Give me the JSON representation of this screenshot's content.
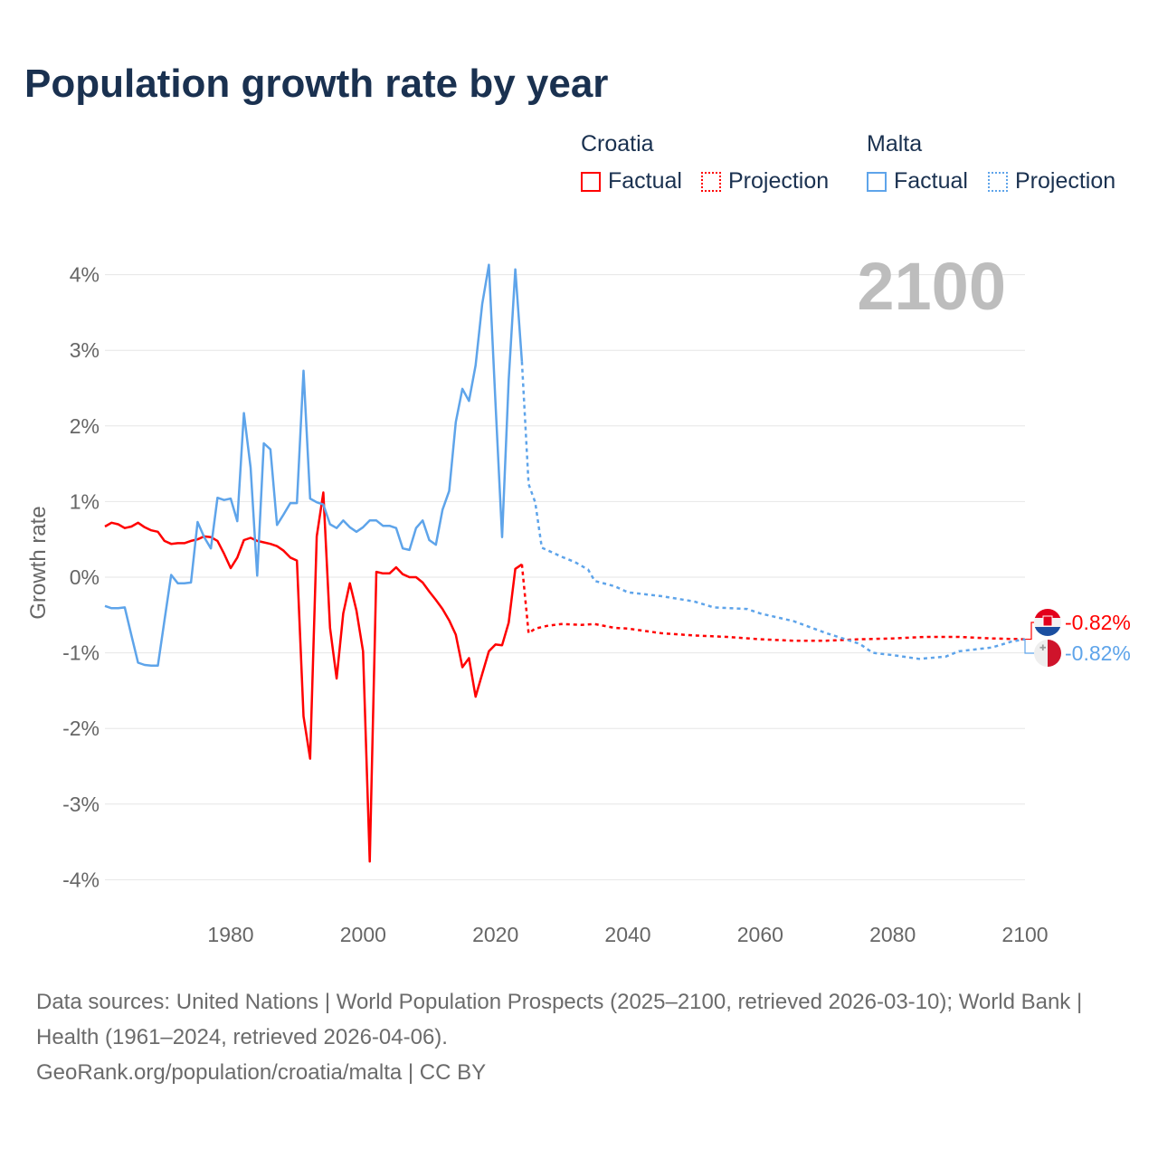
{
  "title": "Population growth rate by year",
  "legend": {
    "groups": [
      {
        "name": "Croatia",
        "factual": "Factual",
        "projection": "Projection",
        "color": "#ff0000"
      },
      {
        "name": "Malta",
        "factual": "Factual",
        "projection": "Projection",
        "color": "#5ea4ea"
      }
    ]
  },
  "year_label": "2100",
  "footer": {
    "sources": "Data sources: United Nations | World Population Prospects (2025–2100, retrieved 2026-03-10); World Bank | Health (1961–2024, retrieved 2026-04-06).",
    "credit": "GeoRank.org/population/croatia/malta | CC BY"
  },
  "chart_data": {
    "type": "line",
    "title": "Population growth rate by year",
    "xlabel": "",
    "ylabel": "Growth rate",
    "xlim": [
      1961,
      2100
    ],
    "ylim": [
      -4.4,
      4.3
    ],
    "xticks": [
      1980,
      2000,
      2020,
      2040,
      2060,
      2080,
      2100
    ],
    "yticks": [
      4,
      3,
      2,
      1,
      0,
      -1,
      -2,
      -3,
      -4
    ],
    "ytick_labels": [
      "4%",
      "3%",
      "2%",
      "1%",
      "0%",
      "-1%",
      "-2%",
      "-3%",
      "-4%"
    ],
    "grid": true,
    "series": [
      {
        "name": "Croatia Factual",
        "color": "#ff0000",
        "dashed": false,
        "x": [
          1961,
          1962,
          1963,
          1964,
          1965,
          1966,
          1967,
          1968,
          1969,
          1970,
          1971,
          1972,
          1973,
          1974,
          1975,
          1976,
          1977,
          1978,
          1979,
          1980,
          1981,
          1982,
          1983,
          1984,
          1985,
          1986,
          1987,
          1988,
          1989,
          1990,
          1991,
          1992,
          1993,
          1994,
          1995,
          1996,
          1997,
          1998,
          1999,
          2000,
          2001,
          2002,
          2003,
          2004,
          2005,
          2006,
          2007,
          2008,
          2009,
          2010,
          2011,
          2012,
          2013,
          2014,
          2015,
          2016,
          2017,
          2018,
          2019,
          2020,
          2021,
          2022,
          2023,
          2024
        ],
        "y": [
          0.67,
          0.72,
          0.7,
          0.65,
          0.67,
          0.72,
          0.66,
          0.62,
          0.6,
          0.48,
          0.44,
          0.45,
          0.45,
          0.48,
          0.5,
          0.54,
          0.53,
          0.48,
          0.31,
          0.12,
          0.26,
          0.49,
          0.52,
          0.48,
          0.46,
          0.44,
          0.41,
          0.35,
          0.26,
          0.22,
          -1.84,
          -2.4,
          0.54,
          1.12,
          -0.67,
          -1.34,
          -0.48,
          -0.08,
          -0.44,
          -0.98,
          -3.76,
          0.07,
          0.05,
          0.05,
          0.13,
          0.04,
          0.0,
          0.0,
          -0.07,
          -0.19,
          -0.3,
          -0.42,
          -0.57,
          -0.76,
          -1.19,
          -1.07,
          -1.58,
          -1.28,
          -0.98,
          -0.89,
          -0.9,
          -0.6,
          0.11,
          0.17
        ]
      },
      {
        "name": "Croatia Projection",
        "color": "#ff0000",
        "dashed": true,
        "x": [
          2024,
          2025,
          2026,
          2028,
          2030,
          2033,
          2035,
          2038,
          2040,
          2045,
          2050,
          2055,
          2060,
          2065,
          2070,
          2075,
          2080,
          2085,
          2090,
          2095,
          2100
        ],
        "y": [
          0.17,
          -0.74,
          -0.68,
          -0.64,
          -0.62,
          -0.63,
          -0.62,
          -0.67,
          -0.68,
          -0.74,
          -0.77,
          -0.79,
          -0.82,
          -0.84,
          -0.84,
          -0.82,
          -0.81,
          -0.79,
          -0.79,
          -0.81,
          -0.82
        ]
      },
      {
        "name": "Malta Factual",
        "color": "#5ea4ea",
        "dashed": false,
        "x": [
          1961,
          1962,
          1963,
          1964,
          1965,
          1966,
          1967,
          1968,
          1969,
          1970,
          1971,
          1972,
          1973,
          1974,
          1975,
          1976,
          1977,
          1978,
          1979,
          1980,
          1981,
          1982,
          1983,
          1984,
          1985,
          1986,
          1987,
          1988,
          1989,
          1990,
          1991,
          1992,
          1993,
          1994,
          1995,
          1996,
          1997,
          1998,
          1999,
          2000,
          2001,
          2002,
          2003,
          2004,
          2005,
          2006,
          2007,
          2008,
          2009,
          2010,
          2011,
          2012,
          2013,
          2014,
          2015,
          2016,
          2017,
          2018,
          2019,
          2020,
          2021,
          2022,
          2023,
          2024
        ],
        "y": [
          -0.38,
          -0.41,
          -0.41,
          -0.4,
          -0.77,
          -1.13,
          -1.16,
          -1.17,
          -1.17,
          -0.57,
          0.03,
          -0.08,
          -0.08,
          -0.07,
          0.73,
          0.53,
          0.38,
          1.05,
          1.02,
          1.04,
          0.74,
          2.17,
          1.45,
          0.02,
          1.77,
          1.69,
          0.69,
          0.83,
          0.98,
          0.98,
          2.73,
          1.04,
          0.99,
          0.96,
          0.7,
          0.65,
          0.75,
          0.66,
          0.6,
          0.66,
          0.75,
          0.75,
          0.68,
          0.68,
          0.65,
          0.38,
          0.36,
          0.65,
          0.75,
          0.49,
          0.43,
          0.89,
          1.14,
          2.05,
          2.49,
          2.33,
          2.8,
          3.61,
          4.13,
          2.3,
          0.53,
          2.61,
          4.07,
          2.85
        ]
      },
      {
        "name": "Malta Projection",
        "color": "#5ea4ea",
        "dashed": true,
        "x": [
          2024,
          2025,
          2026,
          2027,
          2028,
          2030,
          2032,
          2034,
          2035,
          2038,
          2040,
          2045,
          2050,
          2053,
          2058,
          2060,
          2065,
          2070,
          2075,
          2077,
          2080,
          2084,
          2088,
          2090,
          2095,
          2098,
          2100
        ],
        "y": [
          2.85,
          1.23,
          0.99,
          0.39,
          0.35,
          0.27,
          0.2,
          0.1,
          -0.05,
          -0.12,
          -0.2,
          -0.25,
          -0.32,
          -0.4,
          -0.42,
          -0.48,
          -0.58,
          -0.74,
          -0.88,
          -1.0,
          -1.03,
          -1.08,
          -1.05,
          -0.98,
          -0.93,
          -0.85,
          -0.82
        ]
      }
    ],
    "end_labels": [
      {
        "country": "Croatia",
        "value": "-0.82%",
        "color": "#ff0000"
      },
      {
        "country": "Malta",
        "value": "-0.82%",
        "color": "#5ea4ea"
      }
    ]
  }
}
